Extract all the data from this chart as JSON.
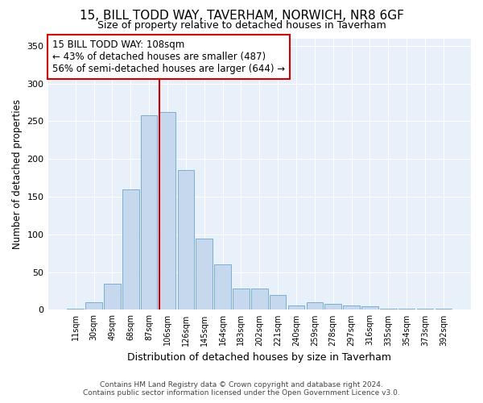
{
  "title": "15, BILL TODD WAY, TAVERHAM, NORWICH, NR8 6GF",
  "subtitle": "Size of property relative to detached houses in Taverham",
  "xlabel": "Distribution of detached houses by size in Taverham",
  "ylabel": "Number of detached properties",
  "categories": [
    "11sqm",
    "30sqm",
    "49sqm",
    "68sqm",
    "87sqm",
    "106sqm",
    "126sqm",
    "145sqm",
    "164sqm",
    "183sqm",
    "202sqm",
    "221sqm",
    "240sqm",
    "259sqm",
    "278sqm",
    "297sqm",
    "316sqm",
    "335sqm",
    "354sqm",
    "373sqm",
    "392sqm"
  ],
  "values": [
    2,
    10,
    35,
    160,
    258,
    262,
    185,
    95,
    60,
    28,
    28,
    20,
    6,
    10,
    8,
    6,
    5,
    2,
    2,
    1,
    2
  ],
  "bar_color": "#c5d8ee",
  "bar_edge_color": "#7aaed4",
  "property_line_label": "15 BILL TODD WAY: 108sqm",
  "annotation_line1": "← 43% of detached houses are smaller (487)",
  "annotation_line2": "56% of semi-detached houses are larger (644) →",
  "line_color": "#cc0000",
  "box_edge_color": "#cc0000",
  "ylim": [
    0,
    360
  ],
  "yticks": [
    0,
    50,
    100,
    150,
    200,
    250,
    300,
    350
  ],
  "footer1": "Contains HM Land Registry data © Crown copyright and database right 2024.",
  "footer2": "Contains public sector information licensed under the Open Government Licence v3.0.",
  "plot_bg_color": "#e8f0fa"
}
